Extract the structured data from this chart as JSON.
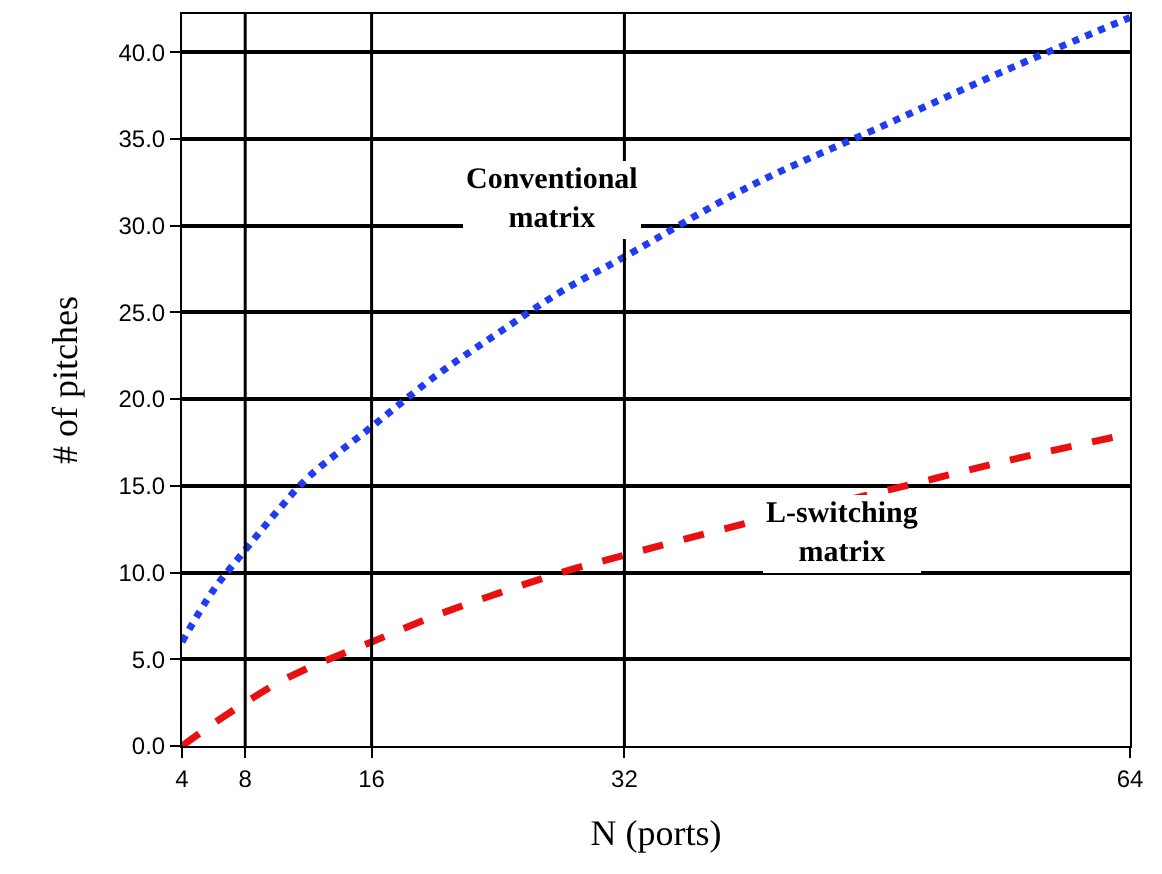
{
  "chart_data": {
    "type": "line",
    "xlabel": "N (ports)",
    "ylabel": "# of pitches",
    "x": [
      4,
      6,
      8,
      10,
      12,
      16,
      20,
      24,
      28,
      32,
      40,
      48,
      56,
      64
    ],
    "series": [
      {
        "color": "#1f3cf0",
        "line_style": "dotted",
        "values": [
          6,
          9,
          11.3,
          13.5,
          15.5,
          18.4,
          21.3,
          23.8,
          26.2,
          28.2,
          32.3,
          35.6,
          38.9,
          42
        ]
      },
      {
        "color": "#e81010",
        "line_style": "dashed",
        "values": [
          0,
          1.3,
          2.5,
          3.6,
          4.5,
          6,
          7.5,
          8.8,
          10,
          11,
          12.9,
          14.6,
          16.4,
          18
        ]
      }
    ],
    "xlim": [
      4,
      64
    ],
    "xticks": [
      4,
      8,
      16,
      32,
      64
    ],
    "ylim": [
      0,
      42.2
    ],
    "yticks": [
      {
        "value": 0,
        "label": "0.0"
      },
      {
        "value": 5,
        "label": "5.0"
      },
      {
        "value": 10,
        "label": "10.0"
      },
      {
        "value": 15,
        "label": "15.0"
      },
      {
        "value": 20,
        "label": "20.0"
      },
      {
        "value": 25,
        "label": "25.0"
      },
      {
        "value": 30,
        "label": "30.0"
      },
      {
        "value": 35,
        "label": "35.0"
      },
      {
        "value": 40,
        "label": "40.0"
      }
    ],
    "grid": "y",
    "ref_lines": [
      {
        "axis": "x",
        "value": 8
      },
      {
        "axis": "x",
        "value": 16
      },
      {
        "axis": "x",
        "value": 32
      }
    ],
    "annotations": [
      "Conventional\nmatrix",
      "L-switching\nmatrix"
    ]
  }
}
